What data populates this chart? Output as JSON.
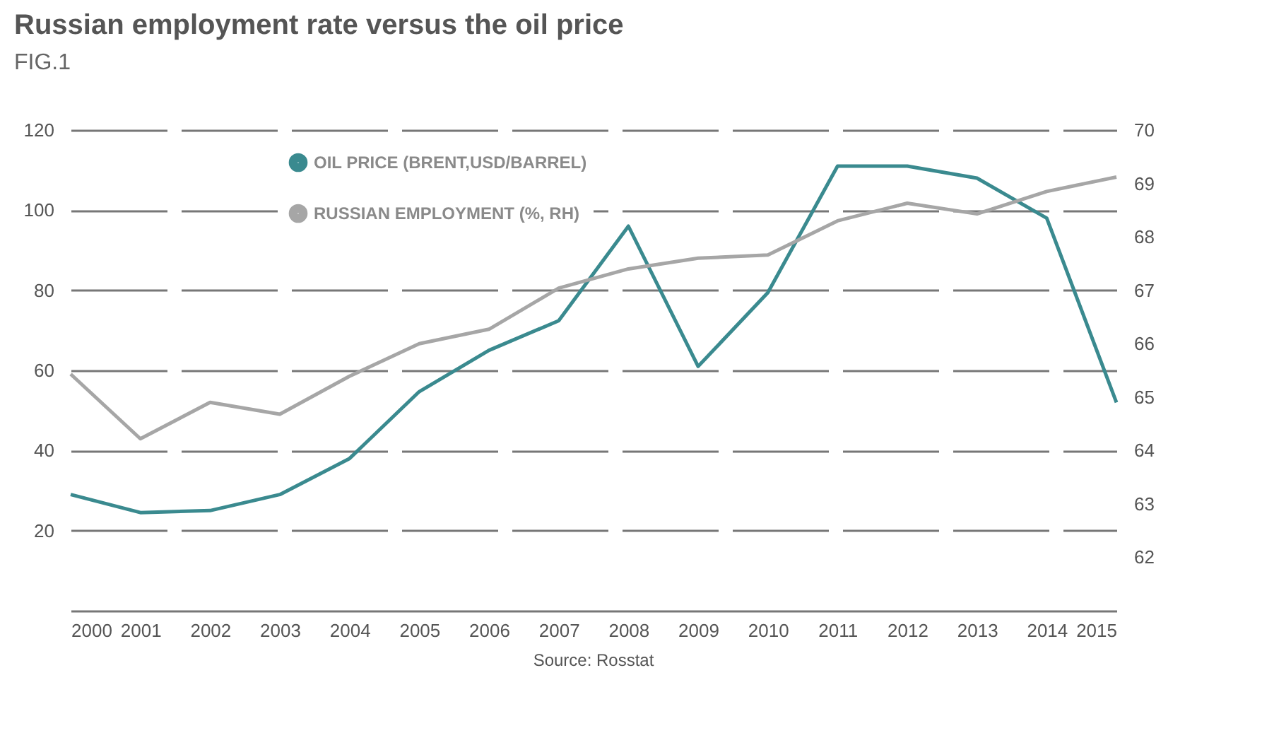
{
  "chart_data": {
    "type": "line",
    "title": "Russian employment rate versus the oil price",
    "annotations": [
      "FIG.1",
      "Source: Rosstat"
    ],
    "x": [
      2000,
      2001,
      2002,
      2003,
      2004,
      2005,
      2006,
      2007,
      2008,
      2009,
      2010,
      2011,
      2012,
      2013,
      2014,
      2015
    ],
    "xlim": [
      2000,
      2015
    ],
    "xticks": [
      2000,
      2001,
      2002,
      2003,
      2004,
      2005,
      2006,
      2007,
      2008,
      2009,
      2010,
      2011,
      2012,
      2013,
      2014,
      2015
    ],
    "ylim": [
      0,
      120
    ],
    "yticks": [
      20,
      40,
      60,
      80,
      100,
      120
    ],
    "y2lim": [
      61,
      70
    ],
    "y2ticks": [
      62,
      63,
      64,
      65,
      66,
      67,
      68,
      69,
      70
    ],
    "grid": "y",
    "legend": "top",
    "marker": "none",
    "line_style": "solid",
    "series": [
      {
        "name": "OIL PRICE (BRENT,USD/BARREL)",
        "color": "#3a8a8f",
        "values": [
          29,
          24.5,
          25,
          29,
          38,
          54.7,
          65,
          72.4,
          96,
          61,
          79.4,
          111,
          111,
          108,
          98,
          52
        ]
      },
      {
        "name": "RUSSIAN EMPLOYMENT (%, RH)",
        "color": "#a6a6a6",
        "axis": "y2",
        "values": [
          65.43,
          64.22,
          64.9,
          64.68,
          65.39,
          66.0,
          66.27,
          67.04,
          67.4,
          67.6,
          67.66,
          68.3,
          68.63,
          68.43,
          68.85,
          69.12
        ]
      }
    ]
  }
}
